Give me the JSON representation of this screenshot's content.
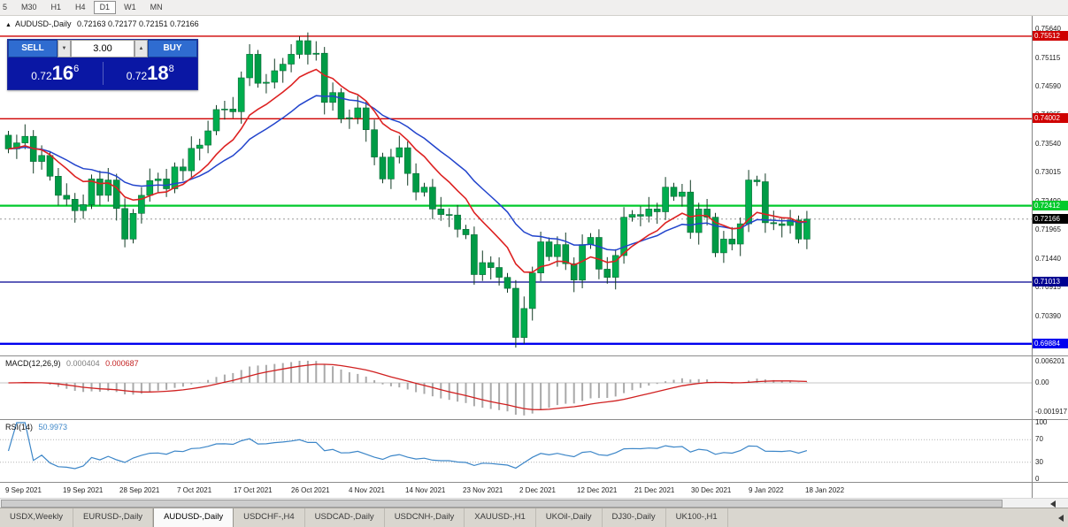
{
  "toolbar": {
    "timeframes": [
      {
        "label": "5",
        "active": false
      },
      {
        "label": "M30",
        "active": false
      },
      {
        "label": "H1",
        "active": false
      },
      {
        "label": "H4",
        "active": false
      },
      {
        "label": "D1",
        "active": true
      },
      {
        "label": "W1",
        "active": false
      },
      {
        "label": "MN",
        "active": false
      }
    ]
  },
  "chart": {
    "symbol_title": "AUDUSD-,Daily",
    "ohlc_text": "0.72163 0.72177 0.72151 0.72166"
  },
  "trade_panel": {
    "sell_label": "SELL",
    "buy_label": "BUY",
    "volume": "3.00",
    "sell_price": {
      "big": "0.72",
      "mid": "16",
      "sup": "6"
    },
    "buy_price": {
      "big": "0.72",
      "mid": "18",
      "sup": "8"
    }
  },
  "hlines": [
    {
      "price": 0.75512,
      "label": "0.75512",
      "color": "#cf0000",
      "width": 1.4
    },
    {
      "price": 0.74002,
      "label": "0.74002",
      "color": "#cf0000",
      "width": 1.4
    },
    {
      "price": 0.72412,
      "label": "0.72412",
      "color": "#00ca2c",
      "width": 2.2
    },
    {
      "price": 0.71013,
      "label": "0.71013",
      "color": "#000091",
      "width": 1.2
    },
    {
      "price": 0.69884,
      "label": "0.69884",
      "color": "#0000ef",
      "width": 2.4
    }
  ],
  "current_price": {
    "price": 0.72166,
    "label": "0.72166",
    "color": "#000000"
  },
  "price_scale": {
    "labels": [
      "0.75640",
      "0.75115",
      "0.74590",
      "0.74065",
      "0.73540",
      "0.73015",
      "0.72490",
      "0.71965",
      "0.71440",
      "0.70915",
      "0.70390",
      "0.69865"
    ]
  },
  "macd_panel": {
    "name": "MACD(12,26,9)",
    "main_value": "0.000404",
    "signal_value": "0.000687",
    "scale": [
      "0.006201",
      "0.00",
      "-0.001917"
    ],
    "histogram_color": "#a9a9a9",
    "signal_color": "#d02020"
  },
  "rsi_panel": {
    "name": "RSI(14)",
    "value": "50.9973",
    "scale": [
      "100",
      "70",
      "30",
      "0"
    ],
    "levels": [
      70,
      30
    ],
    "line_color": "#3c86c8"
  },
  "x_axis": {
    "labels": [
      "9 Sep 2021",
      "19 Sep 2021",
      "28 Sep 2021",
      "7 Oct 2021",
      "17 Oct 2021",
      "26 Oct 2021",
      "4 Nov 2021",
      "14 Nov 2021",
      "23 Nov 2021",
      "2 Dec 2021",
      "12 Dec 2021",
      "21 Dec 2021",
      "30 Dec 2021",
      "9 Jan 2022",
      "18 Jan 2022"
    ]
  },
  "tabs": [
    {
      "label": "USDX,Weekly",
      "active": false
    },
    {
      "label": "EURUSD-,Daily",
      "active": false
    },
    {
      "label": "AUDUSD-,Daily",
      "active": true
    },
    {
      "label": "USDCHF-,H4",
      "active": false
    },
    {
      "label": "USDCAD-,Daily",
      "active": false
    },
    {
      "label": "USDCNH-,Daily",
      "active": false
    },
    {
      "label": "XAUUSD-,H1",
      "active": false
    },
    {
      "label": "UKOil-,Daily",
      "active": false
    },
    {
      "label": "DJ30-,Daily",
      "active": false
    },
    {
      "label": "UK100-,H1",
      "active": false
    }
  ],
  "chart_data": {
    "type": "candlestick",
    "symbol": "AUDUSD-",
    "timeframe": "Daily",
    "first_open": 0.737,
    "closes": [
      0.7345,
      0.7356,
      0.7368,
      0.7322,
      0.7333,
      0.7295,
      0.726,
      0.7253,
      0.7232,
      0.7243,
      0.729,
      0.726,
      0.7288,
      0.7236,
      0.718,
      0.7227,
      0.726,
      0.7287,
      0.729,
      0.7272,
      0.7312,
      0.7305,
      0.7346,
      0.7352,
      0.7378,
      0.7417,
      0.7418,
      0.7413,
      0.7475,
      0.7518,
      0.7465,
      0.7467,
      0.7488,
      0.75,
      0.7518,
      0.7543,
      0.7518,
      0.752,
      0.743,
      0.7448,
      0.74,
      0.7402,
      0.742,
      0.738,
      0.733,
      0.729,
      0.733,
      0.7347,
      0.73,
      0.7266,
      0.7275,
      0.7235,
      0.7225,
      0.7224,
      0.7198,
      0.7188,
      0.7115,
      0.7137,
      0.7128,
      0.711,
      0.709,
      0.7,
      0.7053,
      0.7118,
      0.7175,
      0.7148,
      0.717,
      0.7135,
      0.7105,
      0.717,
      0.7183,
      0.7125,
      0.711,
      0.715,
      0.722,
      0.7225,
      0.7222,
      0.7235,
      0.723,
      0.7275,
      0.7258,
      0.7266,
      0.7192,
      0.7235,
      0.722,
      0.7155,
      0.718,
      0.7171,
      0.7208,
      0.7288,
      0.7285,
      0.721,
      0.7208,
      0.7205,
      0.7215,
      0.718,
      0.72166
    ],
    "up_color": "#00ad4e",
    "down_color": "#009a45",
    "wick_color": "#123b24",
    "ma_fast_period": 10,
    "ma_slow_period": 20,
    "ma_fast_color": "#dd2222",
    "ma_slow_color": "#2244cc"
  }
}
